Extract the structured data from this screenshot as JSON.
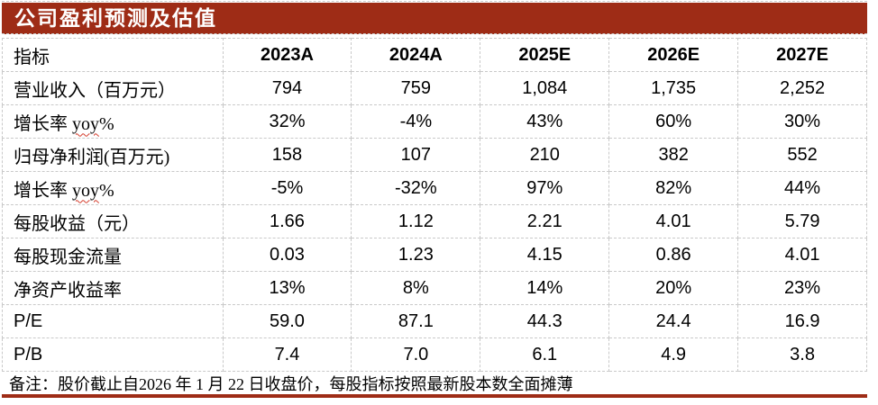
{
  "title": "公司盈利预测及估值",
  "table": {
    "header": [
      "指标",
      "2023A",
      "2024A",
      "2025E",
      "2026E",
      "2027E"
    ],
    "rows": [
      {
        "label": "营业收入（百万元）",
        "values": [
          "794",
          "759",
          "1,084",
          "1,735",
          "2,252"
        ]
      },
      {
        "label": "增长率 yoy%",
        "wavy": "yoy",
        "values": [
          "32%",
          "-4%",
          "43%",
          "60%",
          "30%"
        ]
      },
      {
        "label": "归母净利润(百万元)",
        "values": [
          "158",
          "107",
          "210",
          "382",
          "552"
        ]
      },
      {
        "label": "增长率 yoy%",
        "wavy": "yoy",
        "values": [
          "-5%",
          "-32%",
          "97%",
          "82%",
          "44%"
        ]
      },
      {
        "label": "每股收益（元）",
        "values": [
          "1.66",
          "1.12",
          "2.21",
          "4.01",
          "5.79"
        ]
      },
      {
        "label": "每股现金流量",
        "values": [
          "0.03",
          "1.23",
          "4.15",
          "0.86",
          "4.01"
        ]
      },
      {
        "label": "净资产收益率",
        "values": [
          "13%",
          "8%",
          "14%",
          "20%",
          "23%"
        ]
      },
      {
        "label": "P/E",
        "values": [
          "59.0",
          "87.1",
          "44.3",
          "24.4",
          "16.9"
        ]
      },
      {
        "label": "P/B",
        "values": [
          "7.4",
          "7.0",
          "6.1",
          "4.9",
          "3.8"
        ]
      }
    ]
  },
  "note": "备注：股价截止自2026 年 1 月 22 日收盘价，每股指标按照最新股本数全面摊薄",
  "colors": {
    "accent": "#9e2c16",
    "grid_border": "#c9c9c9",
    "title_text": "#ffffff",
    "body_text": "#000000",
    "spellcheck_underline": "#d43a2a"
  }
}
